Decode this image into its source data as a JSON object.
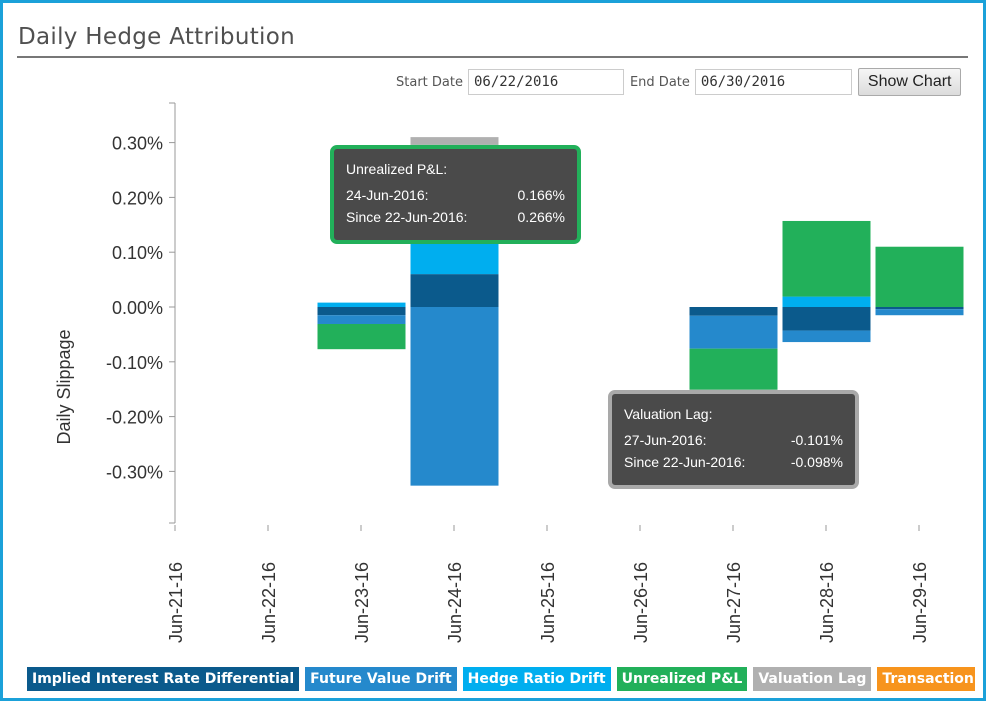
{
  "header": {
    "title": "Daily Hedge Attribution"
  },
  "controls": {
    "start_label": "Start Date",
    "start_value": "06/22/2016",
    "end_label": "End Date",
    "end_value": "06/30/2016",
    "show_chart_label": "Show Chart"
  },
  "tooltips": [
    {
      "series": "Unrealized P&L:",
      "rows": [
        {
          "label": "24-Jun-2016:",
          "value": "0.166%"
        },
        {
          "label": "Since 22-Jun-2016:",
          "value": "0.266%"
        }
      ],
      "border_color": "#22b05a"
    },
    {
      "series": "Valuation Lag:",
      "rows": [
        {
          "label": "27-Jun-2016:",
          "value": "-0.101%"
        },
        {
          "label": "Since 22-Jun-2016:",
          "value": "-0.098%"
        }
      ],
      "border_color": "#a9a9a9"
    }
  ],
  "chart_data": {
    "type": "bar",
    "stacked": true,
    "ylabel": "Daily Slippage",
    "xlabel": "",
    "ylim": [
      -0.39,
      0.37
    ],
    "yticks": [
      "0.30%",
      "0.20%",
      "0.10%",
      "0.00%",
      "-0.10%",
      "-0.20%",
      "-0.30%"
    ],
    "ytick_values": [
      0.3,
      0.2,
      0.1,
      0,
      -0.1,
      -0.2,
      -0.3
    ],
    "categories": [
      "Jun-21-16",
      "Jun-22-16",
      "Jun-23-16",
      "Jun-24-16",
      "Jun-25-16",
      "Jun-26-16",
      "Jun-27-16",
      "Jun-28-16",
      "Jun-29-16"
    ],
    "series": [
      {
        "name": "Implied Interest Rate Differential",
        "color": "#0b5a8c"
      },
      {
        "name": "Future Value Drift",
        "color": "#2589cc"
      },
      {
        "name": "Hedge Ratio Drift",
        "color": "#00aeef"
      },
      {
        "name": "Unrealized P&L",
        "color": "#22b05a"
      },
      {
        "name": "Valuation Lag",
        "color": "#b0b0b0"
      },
      {
        "name": "Transaction Cost",
        "color": "#f7941d"
      }
    ],
    "stacks": [
      [],
      [],
      [
        {
          "s": 2,
          "v": 0.008
        },
        {
          "s": 0,
          "v": -0.015
        },
        {
          "s": 1,
          "v": -0.016
        },
        {
          "s": 3,
          "v": -0.046
        }
      ],
      [
        {
          "s": 0,
          "v": 0.06
        },
        {
          "s": 2,
          "v": 0.06
        },
        {
          "s": 0,
          "v": 0.01
        },
        {
          "s": 3,
          "v": 0.166
        },
        {
          "s": 4,
          "v": 0.014
        },
        {
          "s": 1,
          "v": -0.326
        }
      ],
      [],
      [],
      [
        {
          "s": 0,
          "v": -0.016
        },
        {
          "s": 1,
          "v": -0.06
        },
        {
          "s": 3,
          "v": -0.075
        },
        {
          "s": 4,
          "v": -0.101
        }
      ],
      [
        {
          "s": 2,
          "v": 0.019
        },
        {
          "s": 3,
          "v": 0.138
        },
        {
          "s": 0,
          "v": -0.043
        },
        {
          "s": 1,
          "v": -0.021
        }
      ],
      [
        {
          "s": 3,
          "v": 0.11
        },
        {
          "s": 0,
          "v": -0.004
        },
        {
          "s": 1,
          "v": -0.011
        }
      ]
    ],
    "legend_position": "bottom",
    "grid": false
  },
  "legend": [
    "Implied Interest Rate Differential",
    "Future Value Drift",
    "Hedge Ratio Drift",
    "Unrealized P&L",
    "Valuation Lag",
    "Transaction Cost"
  ]
}
